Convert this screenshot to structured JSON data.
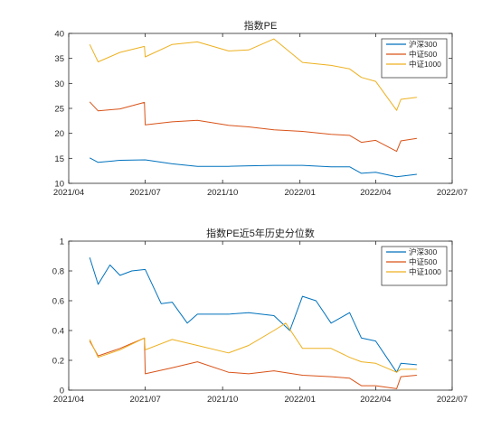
{
  "chart_data": [
    {
      "type": "line",
      "title": "指数PE",
      "xlabel": "",
      "ylabel": "",
      "x_ticks": [
        "2021/04",
        "2021/07",
        "2021/10",
        "2022/01",
        "2022/04",
        "2022/07"
      ],
      "xlim": [
        "2021/04",
        "2022/07"
      ],
      "ylim": [
        10,
        40
      ],
      "y_ticks": [
        "10",
        "15",
        "20",
        "25",
        "30",
        "35",
        "40"
      ],
      "grid": false,
      "legend_position": "top-right",
      "series": [
        {
          "name": "沪深300",
          "color": "#0072BD",
          "x": [
            "2021-04-26",
            "2021-05-06",
            "2021-06-01",
            "2021-07-01",
            "2021-08-02",
            "2021-09-01",
            "2021-10-08",
            "2021-11-01",
            "2021-12-01",
            "2022-01-04",
            "2022-02-07",
            "2022-03-01",
            "2022-03-15",
            "2022-04-01",
            "2022-04-26",
            "2022-05-20"
          ],
          "values": [
            15.1,
            14.2,
            14.6,
            14.7,
            13.9,
            13.4,
            13.4,
            13.5,
            13.6,
            13.6,
            13.3,
            13.3,
            12.0,
            12.2,
            11.3,
            11.8
          ]
        },
        {
          "name": "中证500",
          "color": "#D95319",
          "x": [
            "2021-04-26",
            "2021-05-06",
            "2021-06-01",
            "2021-06-30",
            "2021-07-01",
            "2021-08-02",
            "2021-09-01",
            "2021-10-08",
            "2021-11-01",
            "2021-12-01",
            "2022-01-04",
            "2022-02-07",
            "2022-03-01",
            "2022-03-15",
            "2022-04-01",
            "2022-04-26",
            "2022-05-01",
            "2022-05-20"
          ],
          "values": [
            26.3,
            24.5,
            24.9,
            26.2,
            21.7,
            22.3,
            22.6,
            21.6,
            21.3,
            20.7,
            20.4,
            19.8,
            19.6,
            18.2,
            18.6,
            16.4,
            18.5,
            19.0
          ]
        },
        {
          "name": "中证1000",
          "color": "#EDB120",
          "x": [
            "2021-04-26",
            "2021-05-06",
            "2021-06-01",
            "2021-06-30",
            "2021-07-01",
            "2021-08-02",
            "2021-09-01",
            "2021-10-08",
            "2021-11-01",
            "2021-12-01",
            "2022-01-04",
            "2022-02-07",
            "2022-03-01",
            "2022-03-15",
            "2022-04-01",
            "2022-04-26",
            "2022-05-01",
            "2022-05-20"
          ],
          "values": [
            37.8,
            34.3,
            36.2,
            37.4,
            35.3,
            37.8,
            38.3,
            36.5,
            36.7,
            38.9,
            34.2,
            33.6,
            32.9,
            31.2,
            30.4,
            24.6,
            26.8,
            27.2
          ]
        }
      ]
    },
    {
      "type": "line",
      "title": "指数PE近5年历史分位数",
      "xlabel": "",
      "ylabel": "",
      "x_ticks": [
        "2021/04",
        "2021/07",
        "2021/10",
        "2022/01",
        "2022/04",
        "2022/07"
      ],
      "xlim": [
        "2021/04",
        "2022/07"
      ],
      "ylim": [
        0,
        1
      ],
      "y_ticks": [
        "0",
        "0.2",
        "0.4",
        "0.6",
        "0.8",
        "1"
      ],
      "grid": false,
      "legend_position": "top-right",
      "series": [
        {
          "name": "沪深300",
          "color": "#0072BD",
          "x": [
            "2021-04-26",
            "2021-05-06",
            "2021-05-20",
            "2021-06-01",
            "2021-06-15",
            "2021-07-01",
            "2021-07-20",
            "2021-08-02",
            "2021-08-20",
            "2021-09-01",
            "2021-10-08",
            "2021-11-01",
            "2021-12-01",
            "2021-12-20",
            "2022-01-04",
            "2022-01-20",
            "2022-02-07",
            "2022-03-01",
            "2022-03-15",
            "2022-04-01",
            "2022-04-26",
            "2022-05-01",
            "2022-05-20"
          ],
          "values": [
            0.89,
            0.71,
            0.84,
            0.77,
            0.8,
            0.81,
            0.58,
            0.59,
            0.45,
            0.51,
            0.51,
            0.52,
            0.5,
            0.4,
            0.63,
            0.6,
            0.45,
            0.52,
            0.35,
            0.33,
            0.12,
            0.18,
            0.17
          ]
        },
        {
          "name": "中证500",
          "color": "#D95319",
          "x": [
            "2021-04-26",
            "2021-05-06",
            "2021-06-01",
            "2021-06-30",
            "2021-07-01",
            "2021-08-02",
            "2021-09-01",
            "2021-10-08",
            "2021-11-01",
            "2021-12-01",
            "2022-01-04",
            "2022-02-07",
            "2022-03-01",
            "2022-03-15",
            "2022-04-01",
            "2022-04-26",
            "2022-05-01",
            "2022-05-20"
          ],
          "values": [
            0.33,
            0.23,
            0.28,
            0.35,
            0.11,
            0.15,
            0.19,
            0.12,
            0.11,
            0.13,
            0.1,
            0.09,
            0.08,
            0.03,
            0.03,
            0.01,
            0.09,
            0.1
          ]
        },
        {
          "name": "中证1000",
          "color": "#EDB120",
          "x": [
            "2021-04-26",
            "2021-05-06",
            "2021-06-01",
            "2021-06-30",
            "2021-07-01",
            "2021-08-02",
            "2021-09-01",
            "2021-10-08",
            "2021-11-01",
            "2021-12-01",
            "2021-12-15",
            "2022-01-04",
            "2022-02-07",
            "2022-03-01",
            "2022-03-15",
            "2022-04-01",
            "2022-04-26",
            "2022-05-01",
            "2022-05-20"
          ],
          "values": [
            0.34,
            0.22,
            0.27,
            0.35,
            0.27,
            0.34,
            0.3,
            0.25,
            0.3,
            0.4,
            0.45,
            0.28,
            0.28,
            0.22,
            0.19,
            0.18,
            0.12,
            0.14,
            0.14
          ]
        }
      ]
    }
  ]
}
